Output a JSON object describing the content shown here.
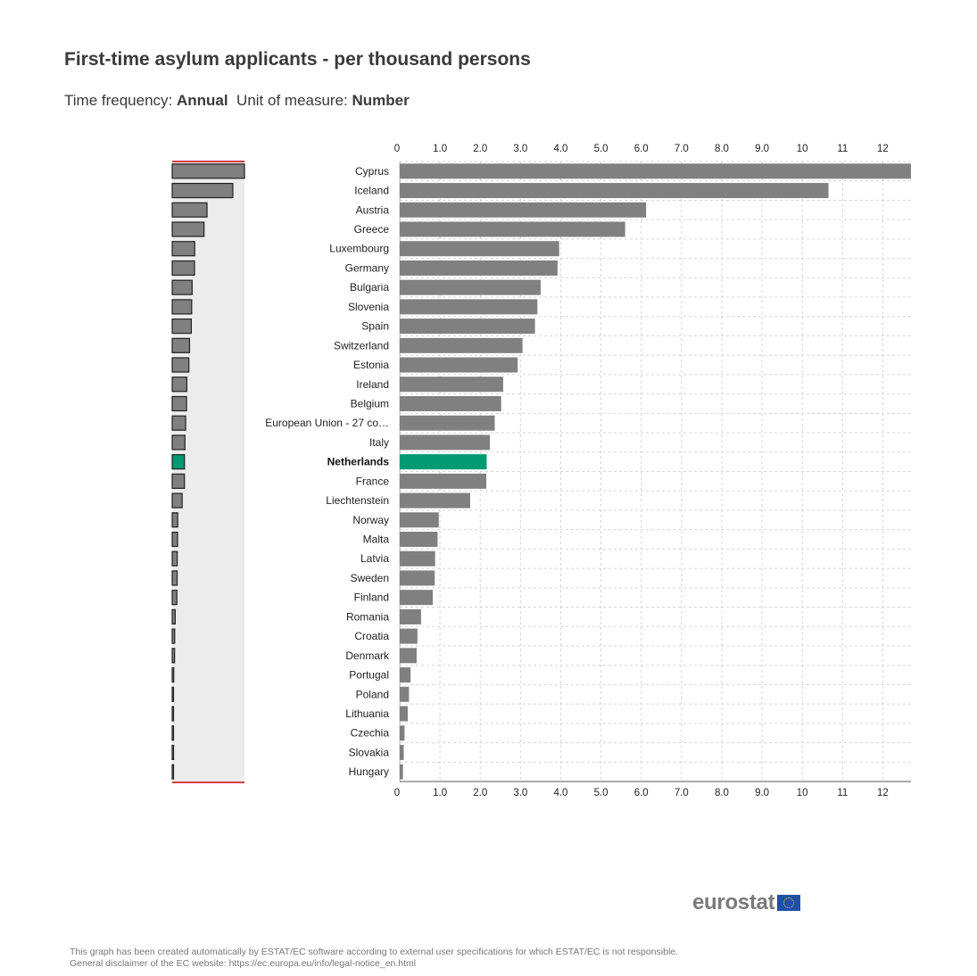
{
  "title": "First-time asylum applicants - per thousand persons",
  "subtitle": {
    "frequency_label": "Time frequency:",
    "frequency_value": "Annual",
    "unit_label": "Unit of measure:",
    "unit_value": "Number"
  },
  "colors": {
    "bar": "#808080",
    "highlight": "#009a72",
    "overview_bg": "#ececec",
    "grid": "#d5d5d5",
    "overview_edge": "#cc0000"
  },
  "chart_data": {
    "type": "bar",
    "orientation": "horizontal",
    "categories": [
      "Cyprus",
      "Iceland",
      "Austria",
      "Greece",
      "Luxembourg",
      "Germany",
      "Bulgaria",
      "Slovenia",
      "Spain",
      "Switzerland",
      "Estonia",
      "Ireland",
      "Belgium",
      "European Union - 27 co…",
      "Italy",
      "Netherlands",
      "France",
      "Liechtenstein",
      "Norway",
      "Malta",
      "Latvia",
      "Sweden",
      "Finland",
      "Romania",
      "Croatia",
      "Denmark",
      "Portugal",
      "Poland",
      "Lithuania",
      "Czechia",
      "Slovakia",
      "Hungary"
    ],
    "values": [
      12.7,
      10.65,
      6.12,
      5.6,
      3.96,
      3.92,
      3.5,
      3.42,
      3.36,
      3.05,
      2.93,
      2.57,
      2.52,
      2.36,
      2.24,
      2.16,
      2.15,
      1.75,
      0.97,
      0.94,
      0.88,
      0.87,
      0.82,
      0.53,
      0.44,
      0.42,
      0.27,
      0.23,
      0.2,
      0.12,
      0.1,
      0.08
    ],
    "highlight": "Netherlands",
    "x_ticks": [
      "0",
      "1.0",
      "2.0",
      "3.0",
      "4.0",
      "5.0",
      "6.0",
      "7.0",
      "8.0",
      "9.0",
      "10",
      "11",
      "12"
    ],
    "x_tick_values": [
      0,
      1,
      2,
      3,
      4,
      5,
      6,
      7,
      8,
      9,
      10,
      11,
      12
    ],
    "xlim": [
      0,
      12.7
    ],
    "grid": true,
    "legend": "none"
  },
  "logo": {
    "text": "eurostat"
  },
  "footer": {
    "line1": "This graph has been created automatically by ESTAT/EC software according to external user specifications for which ESTAT/EC is not responsible.",
    "line2": "General disclaimer of the EC website: https://ec.europa.eu/info/legal-notice_en.html"
  }
}
